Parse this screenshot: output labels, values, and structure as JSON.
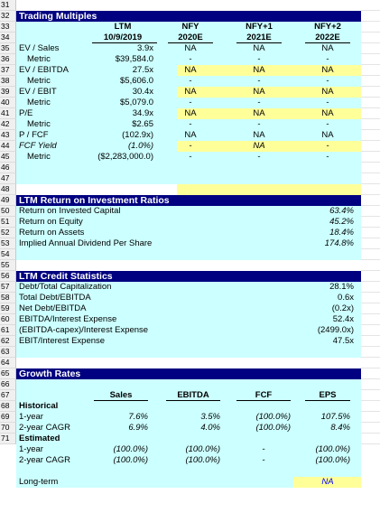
{
  "row_numbers": [
    "31",
    "32",
    "33",
    "34",
    "35",
    "36",
    "37",
    "38",
    "39",
    "40",
    "41",
    "42",
    "43",
    "44",
    "45",
    "46",
    "47",
    "48",
    "49",
    "50",
    "51",
    "52",
    "53",
    "54",
    "55",
    "56",
    "57",
    "58",
    "59",
    "60",
    "61",
    "62",
    "63",
    "64",
    "65",
    "66",
    "67",
    "68",
    "69",
    "70",
    "71"
  ],
  "colors": {
    "header_bg": "#000080",
    "section_bg": "#ccffff",
    "highlight": "#ffff99"
  },
  "trading": {
    "title": "Trading Multiples",
    "headers": [
      {
        "top": "LTM",
        "bottom": "10/9/2019"
      },
      {
        "top": "NFY",
        "bottom": "2020E"
      },
      {
        "top": "NFY+1",
        "bottom": "2021E"
      },
      {
        "top": "NFY+2",
        "bottom": "2022E"
      }
    ],
    "rows": [
      {
        "label": "EV / Sales",
        "values": [
          "3.9x",
          "NA",
          "NA",
          "NA"
        ]
      },
      {
        "label": "Metric",
        "values": [
          "$39,584.0",
          "-",
          "-",
          "-"
        ]
      },
      {
        "label": "EV / EBITDA",
        "values": [
          "27.5x",
          "NA",
          "NA",
          "NA"
        ]
      },
      {
        "label": "Metric",
        "values": [
          "$5,606.0",
          "-",
          "-",
          "-"
        ]
      },
      {
        "label": "EV / EBIT",
        "values": [
          "30.4x",
          "NA",
          "NA",
          "NA"
        ]
      },
      {
        "label": "Metric",
        "values": [
          "$5,079.0",
          "-",
          "-",
          "-"
        ]
      },
      {
        "label": "P/E",
        "values": [
          "34.9x",
          "NA",
          "NA",
          "NA"
        ]
      },
      {
        "label": "Metric",
        "values": [
          "$2.65",
          "-",
          "-",
          "-"
        ]
      },
      {
        "label": "P / FCF",
        "values": [
          "(102.9x)",
          "NA",
          "NA",
          "NA"
        ]
      },
      {
        "label": "FCF Yield",
        "values": [
          "(1.0%)",
          "-",
          "NA",
          "-"
        ]
      },
      {
        "label": "Metric",
        "values": [
          "($2,283,000.0)",
          "-",
          "-",
          "-"
        ]
      }
    ]
  },
  "returns": {
    "title": "LTM Return on Investment Ratios",
    "rows": [
      {
        "label": "Return on Invested Capital",
        "value": "63.4%"
      },
      {
        "label": "Return on Equity",
        "value": "45.2%"
      },
      {
        "label": "Return on Assets",
        "value": "18.4%"
      },
      {
        "label": "Implied Annual Dividend Per Share",
        "value": "174.8%"
      }
    ]
  },
  "credit": {
    "title": "LTM Credit Statistics",
    "rows": [
      {
        "label": "Debt/Total Capitalization",
        "value": "28.1%"
      },
      {
        "label": "Total Debt/EBITDA",
        "value": "0.6x"
      },
      {
        "label": "Net Debt/EBITDA",
        "value": "(0.2x)"
      },
      {
        "label": "EBITDA/Interest Expense",
        "value": "52.4x"
      },
      {
        "label": "(EBITDA-capex)/Interest Expense",
        "value": "(2499.0x)"
      },
      {
        "label": "EBIT/Interest Expense",
        "value": "47.5x"
      }
    ]
  },
  "growth": {
    "title": "Growth Rates",
    "headers": [
      "Sales",
      "EBITDA",
      "FCF",
      "EPS"
    ],
    "historical_label": "Historical",
    "historical": [
      {
        "label": "1-year",
        "values": [
          "7.6%",
          "3.5%",
          "(100.0%)",
          "107.5%"
        ]
      },
      {
        "label": "2-year CAGR",
        "values": [
          "6.9%",
          "4.0%",
          "(100.0%)",
          "8.4%"
        ]
      }
    ],
    "estimated_label": "Estimated",
    "estimated": [
      {
        "label": "1-year",
        "values": [
          "(100.0%)",
          "(100.0%)",
          "-",
          "(100.0%)"
        ]
      },
      {
        "label": "2-year CAGR",
        "values": [
          "(100.0%)",
          "(100.0%)",
          "-",
          "(100.0%)"
        ]
      }
    ],
    "longterm": {
      "label": "Long-term",
      "value": "NA"
    }
  }
}
